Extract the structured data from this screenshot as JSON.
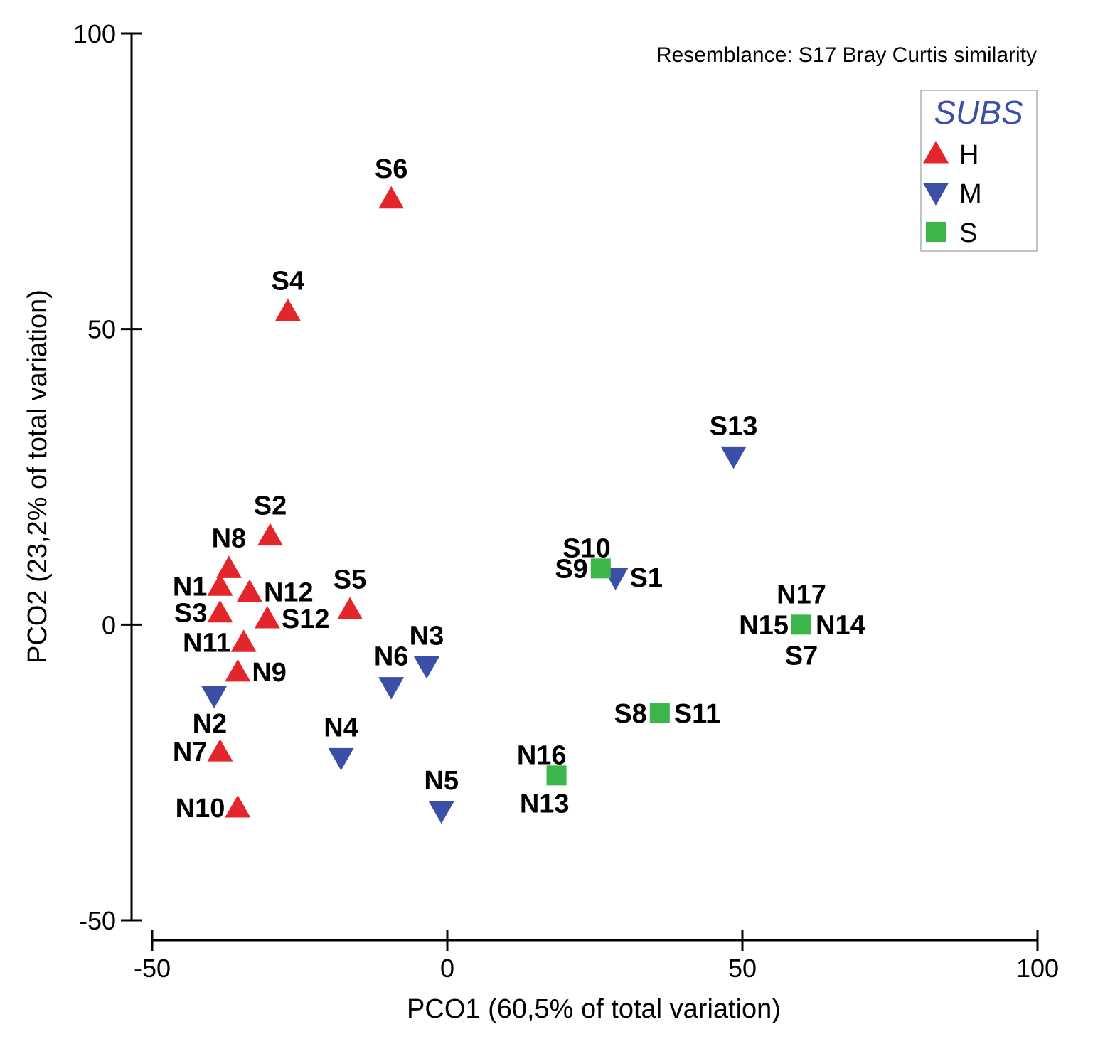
{
  "chart_data": {
    "type": "scatter",
    "title": "",
    "annotation": "Resemblance: S17 Bray Curtis similarity",
    "xlabel": "PCO1 (60,5% of total variation)",
    "ylabel": "PCO2 (23,2% of total variation)",
    "xlim": [
      -50,
      100
    ],
    "ylim": [
      -50,
      100
    ],
    "xticks": [
      -50,
      0,
      50,
      100
    ],
    "yticks": [
      -50,
      0,
      50,
      100
    ],
    "grid": false,
    "legend": {
      "title": "SUBS",
      "title_color": "#3a4fa5",
      "placement": "top-right",
      "entries": [
        {
          "name": "H",
          "marker": "triangle-up",
          "color": "#e3262b"
        },
        {
          "name": "M",
          "marker": "triangle-down",
          "color": "#3a4fa5"
        },
        {
          "name": "S",
          "marker": "square",
          "color": "#3cb54a"
        }
      ]
    },
    "series": [
      {
        "name": "H",
        "points": [
          {
            "label": "S6",
            "x": -9.5,
            "y": 72,
            "label_pos": "above"
          },
          {
            "label": "S4",
            "x": -27,
            "y": 53,
            "label_pos": "above"
          },
          {
            "label": "S2",
            "x": -30,
            "y": 15,
            "label_pos": "above"
          },
          {
            "label": "N8",
            "x": -37,
            "y": 9.5,
            "label_pos": "above"
          },
          {
            "label": "N1",
            "x": -38.5,
            "y": 6.5,
            "label_pos": "left"
          },
          {
            "label": "N12",
            "x": -33.5,
            "y": 5.5,
            "label_pos": "right"
          },
          {
            "label": "S5",
            "x": -16.5,
            "y": 2.5,
            "label_pos": "above"
          },
          {
            "label": "S3",
            "x": -38.5,
            "y": 2,
            "label_pos": "left"
          },
          {
            "label": "S12",
            "x": -30.5,
            "y": 1,
            "label_pos": "right"
          },
          {
            "label": "N11",
            "x": -34.5,
            "y": -3,
            "label_pos": "left"
          },
          {
            "label": "N9",
            "x": -35.5,
            "y": -8,
            "label_pos": "right"
          },
          {
            "label": "N7",
            "x": -38.5,
            "y": -21.5,
            "label_pos": "left"
          },
          {
            "label": "N10",
            "x": -35.5,
            "y": -31,
            "label_pos": "left"
          }
        ]
      },
      {
        "name": "M",
        "points": [
          {
            "label": "S13",
            "x": 48.5,
            "y": 28.5,
            "label_pos": "above"
          },
          {
            "label": "S1",
            "x": 28.5,
            "y": 8,
            "label_pos": "right"
          },
          {
            "label": "N3",
            "x": -3.5,
            "y": -7,
            "label_pos": "above"
          },
          {
            "label": "N6",
            "x": -9.5,
            "y": -10.5,
            "label_pos": "above"
          },
          {
            "label": "N2",
            "x": -39.5,
            "y": -12,
            "label_pos": "below-left"
          },
          {
            "label": "N4",
            "x": -18,
            "y": -22.5,
            "label_pos": "above"
          },
          {
            "label": "N5",
            "x": -1,
            "y": -31.5,
            "label_pos": "above"
          }
        ]
      },
      {
        "name": "S",
        "points": [
          {
            "label": "S10",
            "x": 26,
            "y": 9.5,
            "label_pos": "above-left"
          },
          {
            "label": "S9",
            "x": 26,
            "y": 9.5,
            "label_pos": "left"
          },
          {
            "label": "N17",
            "x": 60,
            "y": 0,
            "label_pos": "above"
          },
          {
            "label": "N15",
            "x": 60,
            "y": 0,
            "label_pos": "left"
          },
          {
            "label": "N14",
            "x": 60,
            "y": 0,
            "label_pos": "right"
          },
          {
            "label": "S7",
            "x": 60,
            "y": 0,
            "label_pos": "below"
          },
          {
            "label": "S8",
            "x": 36,
            "y": -15,
            "label_pos": "left"
          },
          {
            "label": "S11",
            "x": 36,
            "y": -15,
            "label_pos": "right"
          },
          {
            "label": "N16",
            "x": 18.5,
            "y": -25.5,
            "label_pos": "above-left"
          },
          {
            "label": "N13",
            "x": 18.5,
            "y": -25.5,
            "label_pos": "below-left"
          }
        ]
      }
    ]
  }
}
